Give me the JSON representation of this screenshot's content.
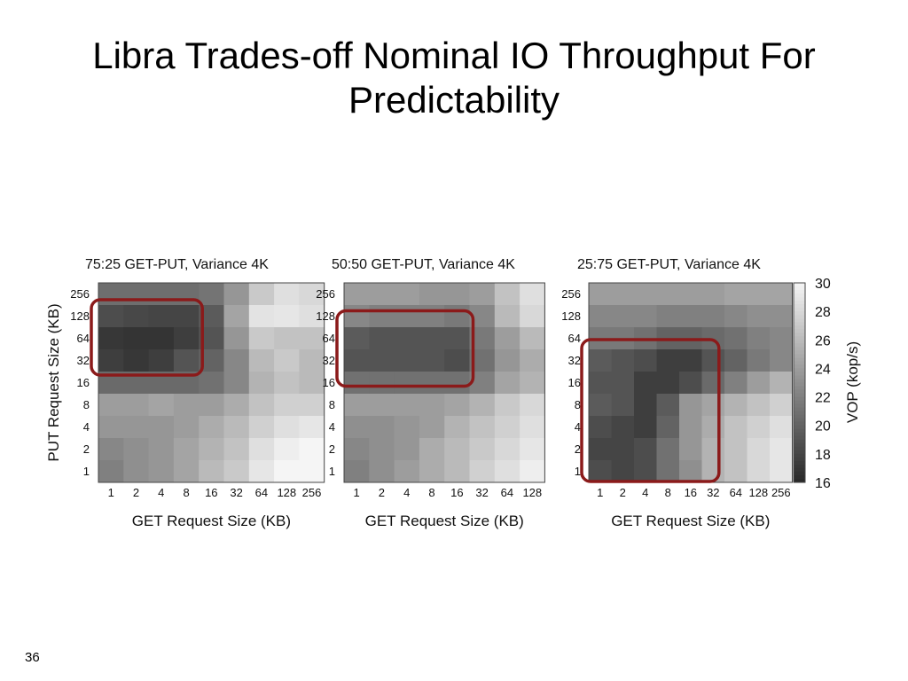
{
  "slide": {
    "title_line1": "Libra Trades-off Nominal IO Throughput For",
    "title_line2": "Predictability",
    "page_number": "36"
  },
  "colors": {
    "highlight_box": "#8b1a1a"
  },
  "chart_data": [
    {
      "type": "heatmap",
      "title": "75:25 GET-PUT, Variance 4K",
      "xlabel": "GET Request Size (KB)",
      "ylabel": "PUT Request Size (KB)",
      "x_categories": [
        "1",
        "2",
        "4",
        "8",
        "16",
        "32",
        "64",
        "128",
        "256"
      ],
      "y_categories": [
        "256",
        "128",
        "64",
        "32",
        "16",
        "8",
        "4",
        "2",
        "1"
      ],
      "value_range": [
        16,
        30
      ],
      "values": [
        [
          20.8,
          20.8,
          20.8,
          20.8,
          21.2,
          23.5,
          27.0,
          28.5,
          28.0
        ],
        [
          18.5,
          18.2,
          18.0,
          18.0,
          19.5,
          24.5,
          28.8,
          29.0,
          28.5
        ],
        [
          17.0,
          16.8,
          16.8,
          17.5,
          19.0,
          23.5,
          27.0,
          26.5,
          26.5
        ],
        [
          17.5,
          17.0,
          17.5,
          19.0,
          20.0,
          22.5,
          26.0,
          27.0,
          26.0
        ],
        [
          20.5,
          20.5,
          20.5,
          20.5,
          21.0,
          22.5,
          25.5,
          26.5,
          26.0
        ],
        [
          24.0,
          24.0,
          24.5,
          24.0,
          24.0,
          25.0,
          26.5,
          27.5,
          27.5
        ],
        [
          23.5,
          23.5,
          23.5,
          24.0,
          25.0,
          26.0,
          27.5,
          28.5,
          29.0
        ],
        [
          22.5,
          23.0,
          23.5,
          24.5,
          25.5,
          26.5,
          28.5,
          29.5,
          30.0
        ],
        [
          22.0,
          23.0,
          23.5,
          24.5,
          26.0,
          27.0,
          29.0,
          30.0,
          30.0
        ]
      ],
      "highlight": {
        "label": "highlight-box-1"
      }
    },
    {
      "type": "heatmap",
      "title": "50:50 GET-PUT, Variance 4K",
      "xlabel": "GET Request Size (KB)",
      "ylabel": "",
      "x_categories": [
        "1",
        "2",
        "4",
        "8",
        "16",
        "32",
        "64",
        "128"
      ],
      "y_categories": [
        "256",
        "128",
        "64",
        "32",
        "16",
        "8",
        "4",
        "2",
        "1"
      ],
      "value_range": [
        16,
        30
      ],
      "values": [
        [
          24.0,
          24.0,
          24.0,
          23.5,
          23.5,
          24.0,
          26.5,
          28.5
        ],
        [
          22.5,
          22.0,
          22.0,
          22.0,
          21.5,
          22.5,
          26.0,
          28.0
        ],
        [
          19.5,
          19.0,
          19.0,
          19.0,
          19.0,
          21.5,
          24.0,
          26.0
        ],
        [
          19.0,
          19.0,
          19.0,
          19.0,
          18.5,
          21.0,
          23.5,
          25.0
        ],
        [
          21.0,
          21.0,
          21.0,
          21.0,
          21.0,
          22.0,
          24.5,
          25.5
        ],
        [
          24.0,
          24.0,
          24.0,
          24.0,
          24.5,
          25.5,
          27.0,
          28.0
        ],
        [
          23.0,
          23.0,
          23.5,
          24.0,
          25.5,
          26.5,
          27.5,
          28.5
        ],
        [
          22.5,
          23.0,
          23.5,
          25.0,
          26.0,
          27.0,
          28.0,
          29.0
        ],
        [
          22.0,
          23.0,
          24.0,
          25.0,
          26.0,
          27.5,
          28.5,
          29.5
        ]
      ],
      "highlight": {
        "label": "highlight-box-2"
      }
    },
    {
      "type": "heatmap",
      "title": "25:75 GET-PUT, Variance 4K",
      "xlabel": "GET Request Size (KB)",
      "ylabel": "",
      "x_categories": [
        "1",
        "2",
        "4",
        "8",
        "16",
        "32",
        "64",
        "128",
        "256"
      ],
      "y_categories": [
        "256",
        "128",
        "64",
        "32",
        "16",
        "8",
        "4",
        "2",
        "1"
      ],
      "value_range": [
        16,
        30
      ],
      "values": [
        [
          24.0,
          24.0,
          24.0,
          24.0,
          24.0,
          24.0,
          24.5,
          24.5,
          24.5
        ],
        [
          22.5,
          22.5,
          22.5,
          22.0,
          22.0,
          22.0,
          22.5,
          23.0,
          23.0
        ],
        [
          21.5,
          21.5,
          21.0,
          20.0,
          20.0,
          20.5,
          21.0,
          22.0,
          22.5
        ],
        [
          19.5,
          19.0,
          18.5,
          17.5,
          17.5,
          19.0,
          20.0,
          21.5,
          22.5
        ],
        [
          19.0,
          19.0,
          17.5,
          17.5,
          18.5,
          20.5,
          22.0,
          24.0,
          25.5
        ],
        [
          19.5,
          19.0,
          17.5,
          19.5,
          23.5,
          24.5,
          25.5,
          26.5,
          27.5
        ],
        [
          18.5,
          18.0,
          17.5,
          20.0,
          23.5,
          25.0,
          26.5,
          27.5,
          28.5
        ],
        [
          18.0,
          18.0,
          18.5,
          21.0,
          23.5,
          25.5,
          26.5,
          28.0,
          29.0
        ],
        [
          18.5,
          18.0,
          18.5,
          21.0,
          23.0,
          25.5,
          26.5,
          28.0,
          29.0
        ]
      ],
      "highlight": {
        "label": "highlight-box-3"
      }
    }
  ],
  "colorbar": {
    "label": "VOP (kop/s)",
    "ticks": [
      "30",
      "28",
      "26",
      "24",
      "22",
      "20",
      "18",
      "16"
    ],
    "range": [
      16,
      30
    ]
  }
}
